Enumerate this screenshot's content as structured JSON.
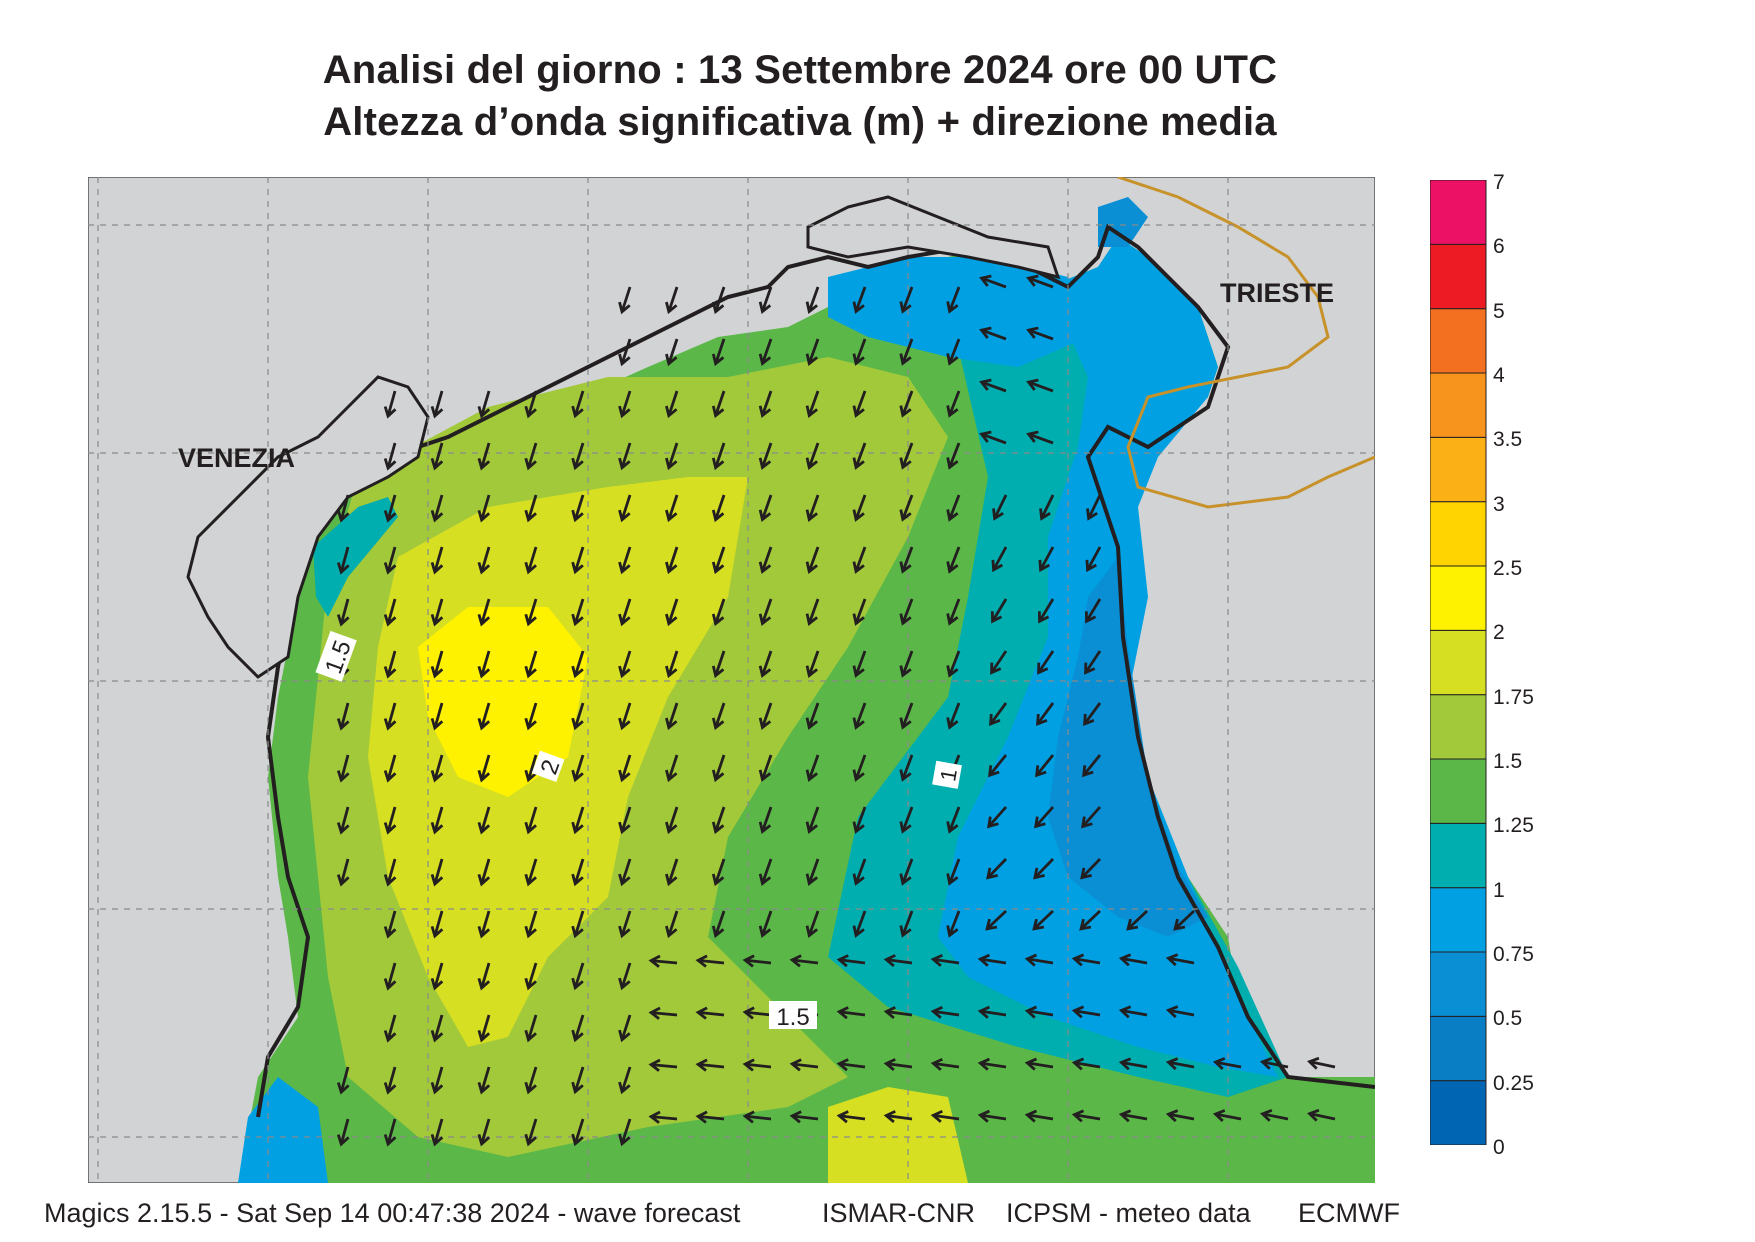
{
  "title": {
    "line1": "Analisi del giorno :  13 Settembre 2024   ore 00 UTC",
    "line2": "Altezza d’onda significativa (m) + direzione media"
  },
  "map": {
    "cities": [
      "VENEZIA",
      "TRIESTE"
    ],
    "contour_labels": [
      "1.5",
      "2",
      "1",
      "1.5"
    ],
    "arrow_direction": "mostly south / south-west; westward in the south-east",
    "colors": {
      "land": "#d1d3d4",
      "coast": "#231f20",
      "border": "#c8922a"
    }
  },
  "legend": {
    "labels": [
      "7",
      "6",
      "5",
      "4",
      "3.5",
      "3",
      "2.5",
      "2",
      "1.75",
      "1.5",
      "1.25",
      "1",
      "0.75",
      "0.5",
      "0.25",
      "0"
    ],
    "colors": [
      "#0066b3",
      "#0a7ec4",
      "#0a8fd4",
      "#00a0e3",
      "#00aeb0",
      "#5bb848",
      "#a2c93a",
      "#d7df23",
      "#fff200",
      "#ffd400",
      "#fbb116",
      "#f7941d",
      "#f37021",
      "#ed1c24",
      "#ec1165"
    ]
  },
  "footer": {
    "left": "Magics 2.15.5 - Sat Sep 14 00:47:38 2024 - wave forecast",
    "mid1": "ISMAR-CNR",
    "mid2": "ICPSM - meteo data",
    "right": "ECMWF"
  }
}
